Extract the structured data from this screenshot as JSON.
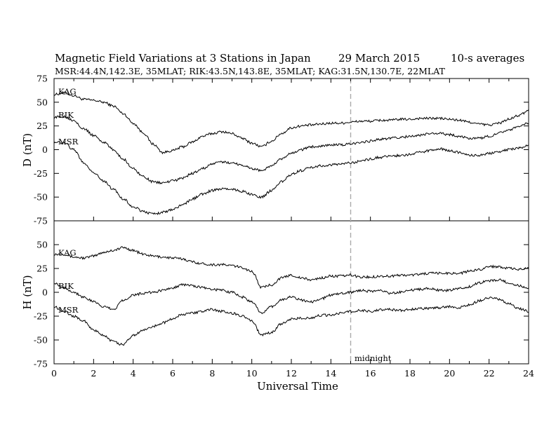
{
  "chart_data": {
    "type": "line",
    "title_left": "Magnetic Field Variations at 3 Stations in Japan",
    "title_date": "29  March   2015",
    "title_right": "10-s averages",
    "subtitle": "MSR:44.4N,142.3E, 35MLAT;  RIK:43.5N,143.8E, 35MLAT;  KAG:31.5N,130.7E, 22MLAT",
    "xlabel": "Universal Time",
    "xlim": [
      0,
      24
    ],
    "x_ticks": [
      "0",
      "2",
      "4",
      "6",
      "8",
      "10",
      "12",
      "14",
      "16",
      "18",
      "20",
      "22",
      "24"
    ],
    "marker": {
      "x": 15,
      "label": "midnight",
      "color": "#aaaaaa"
    },
    "panels": [
      {
        "component": "D",
        "ylabel": "D (nT)",
        "ylim": [
          -75,
          75
        ],
        "y_ticks": [
          "75",
          "50",
          "25",
          "0",
          "-25",
          "-50",
          "-75"
        ],
        "series": [
          {
            "name": "KAG",
            "x": [
              0,
              0.5,
              1,
              1.5,
              2,
              2.5,
              3,
              3.5,
              4,
              4.5,
              5,
              5.5,
              6,
              6.5,
              7,
              7.5,
              8,
              8.5,
              9,
              9.5,
              10,
              10.5,
              11,
              11.5,
              12,
              12.5,
              13,
              13.5,
              14,
              14.5,
              15,
              15.5,
              16,
              16.5,
              17,
              17.5,
              18,
              18.5,
              19,
              19.5,
              20,
              20.5,
              21,
              21.5,
              22,
              22.5,
              23,
              23.5,
              24
            ],
            "y": [
              58,
              60,
              57,
              53,
              52,
              50,
              46,
              38,
              28,
              18,
              6,
              -3,
              -1,
              3,
              8,
              14,
              17,
              19,
              17,
              12,
              7,
              3,
              9,
              17,
              23,
              25,
              26,
              27,
              28,
              28,
              29,
              30,
              30,
              31,
              31,
              32,
              32,
              33,
              33,
              33,
              32,
              31,
              29,
              27,
              26,
              28,
              32,
              36,
              41
            ]
          },
          {
            "name": "RIK",
            "x": [
              0,
              0.5,
              1,
              1.5,
              2,
              2.5,
              3,
              3.5,
              4,
              4.5,
              5,
              5.5,
              6,
              6.5,
              7,
              7.5,
              8,
              8.5,
              9,
              9.5,
              10,
              10.5,
              11,
              11.5,
              12,
              12.5,
              13,
              13.5,
              14,
              14.5,
              15,
              15.5,
              16,
              16.5,
              17,
              17.5,
              18,
              18.5,
              19,
              19.5,
              20,
              20.5,
              21,
              21.5,
              22,
              22.5,
              23,
              23.5,
              24
            ],
            "y": [
              34,
              35,
              31,
              22,
              15,
              8,
              0,
              -10,
              -20,
              -28,
              -34,
              -35,
              -33,
              -30,
              -25,
              -20,
              -15,
              -13,
              -14,
              -16,
              -20,
              -22,
              -17,
              -10,
              -4,
              0,
              3,
              4,
              5,
              5,
              6,
              8,
              9,
              11,
              12,
              13,
              14,
              15,
              17,
              17,
              16,
              14,
              12,
              12,
              14,
              18,
              21,
              24,
              28
            ]
          },
          {
            "name": "MSR",
            "x": [
              0,
              0.5,
              1,
              1.5,
              2,
              2.5,
              3,
              3.5,
              4,
              4.5,
              5,
              5.5,
              6,
              6.5,
              7,
              7.5,
              8,
              8.5,
              9,
              9.5,
              10,
              10.5,
              11,
              11.5,
              12,
              12.5,
              13,
              13.5,
              14,
              14.5,
              15,
              15.5,
              16,
              16.5,
              17,
              17.5,
              18,
              18.5,
              19,
              19.5,
              20,
              20.5,
              21,
              21.5,
              22,
              22.5,
              23,
              23.5,
              24
            ],
            "y": [
              8,
              7,
              0,
              -14,
              -24,
              -33,
              -42,
              -52,
              -60,
              -65,
              -68,
              -66,
              -63,
              -58,
              -52,
              -47,
              -43,
              -41,
              -42,
              -44,
              -47,
              -50,
              -43,
              -34,
              -26,
              -22,
              -19,
              -17,
              -16,
              -15,
              -14,
              -12,
              -10,
              -8,
              -7,
              -6,
              -5,
              -3,
              -1,
              1,
              -1,
              -3,
              -6,
              -6,
              -4,
              -2,
              0,
              2,
              4
            ]
          }
        ]
      },
      {
        "component": "H",
        "ylabel": "H (nT)",
        "ylim": [
          -75,
          75
        ],
        "y_ticks": [
          "50",
          "25",
          "0",
          "-25",
          "-50",
          "-75"
        ],
        "series": [
          {
            "name": "KAG",
            "x": [
              0,
              0.5,
              1,
              1.5,
              2,
              2.5,
              3,
              3.5,
              4,
              4.5,
              5,
              5.5,
              6,
              6.5,
              7,
              7.5,
              8,
              8.5,
              9,
              9.5,
              10,
              10.5,
              11,
              11.5,
              12,
              12.5,
              13,
              13.5,
              14,
              14.5,
              15,
              15.5,
              16,
              16.5,
              17,
              17.5,
              18,
              18.5,
              19,
              19.5,
              20,
              20.5,
              21,
              21.5,
              22,
              22.5,
              23,
              23.5,
              24
            ],
            "y": [
              40,
              40,
              37,
              36,
              38,
              42,
              44,
              47,
              44,
              40,
              38,
              37,
              36,
              35,
              32,
              30,
              29,
              29,
              28,
              26,
              22,
              5,
              8,
              15,
              18,
              15,
              13,
              15,
              17,
              17,
              18,
              16,
              16,
              17,
              17,
              18,
              18,
              19,
              20,
              20,
              20,
              20,
              22,
              24,
              27,
              27,
              25,
              24,
              25
            ]
          },
          {
            "name": "RIK",
            "x": [
              0,
              0.5,
              1,
              1.5,
              2,
              2.5,
              3,
              3.5,
              4,
              4.5,
              5,
              5.5,
              6,
              6.5,
              7,
              7.5,
              8,
              8.5,
              9,
              9.5,
              10,
              10.5,
              11,
              11.5,
              12,
              12.5,
              13,
              13.5,
              14,
              14.5,
              15,
              15.5,
              16,
              16.5,
              17,
              17.5,
              18,
              18.5,
              19,
              19.5,
              20,
              20.5,
              21,
              21.5,
              22,
              22.5,
              23,
              23.5,
              24
            ],
            "y": [
              10,
              5,
              0,
              -5,
              -10,
              -15,
              -18,
              -8,
              -3,
              -1,
              0,
              2,
              5,
              8,
              7,
              5,
              3,
              2,
              0,
              -5,
              -10,
              -22,
              -15,
              -8,
              -5,
              -8,
              -10,
              -7,
              -3,
              -1,
              0,
              2,
              1,
              2,
              -1,
              0,
              2,
              3,
              4,
              2,
              2,
              4,
              6,
              10,
              12,
              13,
              10,
              7,
              4
            ]
          },
          {
            "name": "MSR",
            "x": [
              0,
              0.5,
              1,
              1.5,
              2,
              2.5,
              3,
              3.5,
              4,
              4.5,
              5,
              5.5,
              6,
              6.5,
              7,
              7.5,
              8,
              8.5,
              9,
              9.5,
              10,
              10.5,
              11,
              11.5,
              12,
              12.5,
              13,
              13.5,
              14,
              14.5,
              15,
              15.5,
              16,
              16.5,
              17,
              17.5,
              18,
              18.5,
              19,
              19.5,
              20,
              20.5,
              21,
              21.5,
              22,
              22.5,
              23,
              23.5,
              24
            ],
            "y": [
              -15,
              -20,
              -25,
              -30,
              -40,
              -45,
              -52,
              -55,
              -45,
              -40,
              -36,
              -32,
              -28,
              -23,
              -22,
              -20,
              -18,
              -20,
              -22,
              -25,
              -30,
              -45,
              -42,
              -33,
              -28,
              -27,
              -27,
              -24,
              -24,
              -22,
              -20,
              -19,
              -20,
              -18,
              -18,
              -19,
              -18,
              -17,
              -17,
              -16,
              -15,
              -16,
              -13,
              -9,
              -6,
              -7,
              -12,
              -17,
              -20
            ]
          }
        ]
      }
    ]
  }
}
